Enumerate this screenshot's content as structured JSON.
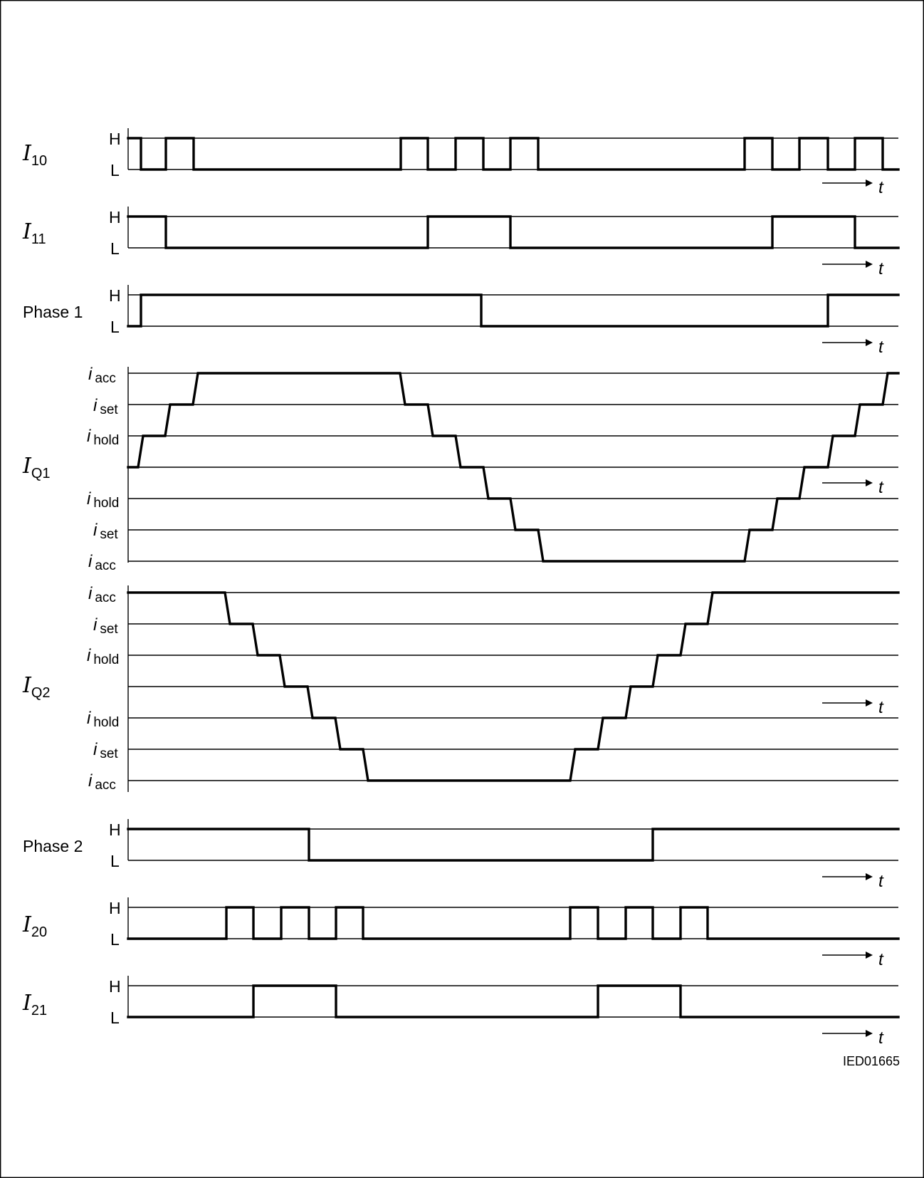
{
  "diagram_ref": "IED01665",
  "time_label": "t",
  "levels": {
    "high": "H",
    "low": "L"
  },
  "current_levels": {
    "prefix": "i",
    "acc": "acc",
    "set": "set",
    "hold": "hold"
  },
  "signals": {
    "i10": {
      "symbol": "I",
      "subscript": "10"
    },
    "i11": {
      "symbol": "I",
      "subscript": "11"
    },
    "phase1": {
      "label": "Phase 1"
    },
    "iq1": {
      "symbol": "I",
      "subscript": "Q1"
    },
    "iq2": {
      "symbol": "I",
      "subscript": "Q2"
    },
    "phase2": {
      "label": "Phase 2"
    },
    "i20": {
      "symbol": "I",
      "subscript": "20"
    },
    "i21": {
      "symbol": "I",
      "subscript": "21"
    }
  }
}
